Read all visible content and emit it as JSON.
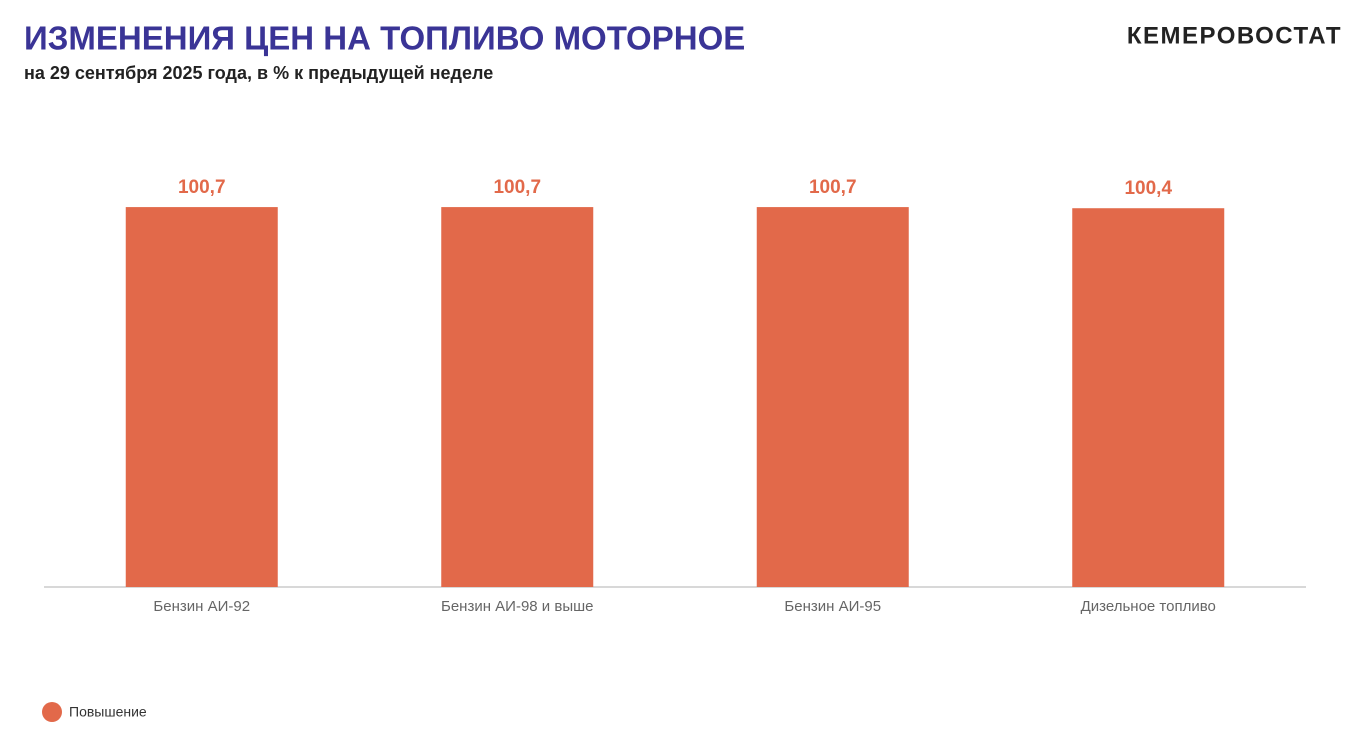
{
  "header": {
    "brand": "КЕМЕРОВОСТАТ"
  },
  "chart_data": {
    "type": "bar",
    "title": "ИЗМЕНЕНИЯ ЦЕН НА ТОПЛИВО МОТОРНОЕ",
    "subtitle": "на 29 сентября 2025 года, в % к предыдущей неделе",
    "categories": [
      "Бензин АИ-92",
      "Бензин АИ-98 и выше",
      "Бензин АИ-95",
      "Дизельное топливо"
    ],
    "series": [
      {
        "name": "Повышение",
        "color": "#e2694a",
        "values": [
          100.7,
          100.7,
          100.7,
          100.4
        ],
        "value_labels": [
          "100,7",
          "100,7",
          "100,7",
          "100,4"
        ]
      }
    ],
    "ylim": [
      0,
      110
    ],
    "legend": "bottom-left"
  }
}
